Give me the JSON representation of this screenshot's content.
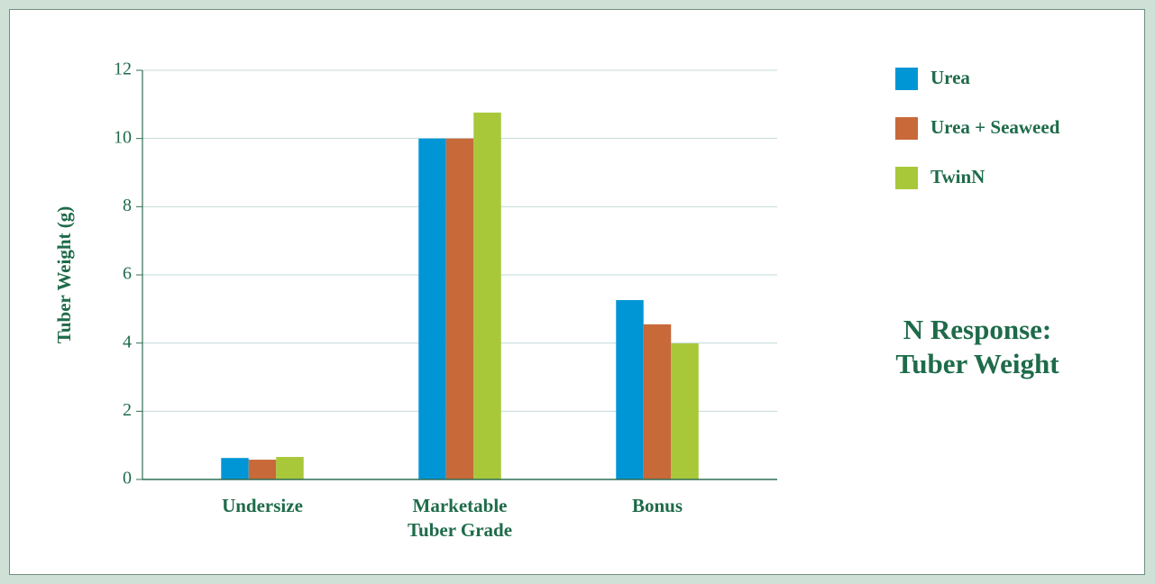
{
  "chart_data": {
    "type": "bar",
    "title": "N Response:\nTuber Weight",
    "y_label": "Tuber Weight (g)",
    "categories": [
      "Undersize",
      "Marketable\nTuber Grade",
      "Bonus"
    ],
    "series": [
      {
        "name": "Urea",
        "color": "#0096d6",
        "values": [
          0.63,
          10,
          5.26
        ]
      },
      {
        "name": "Urea + Seaweed",
        "color": "#c8693a",
        "values": [
          0.58,
          10,
          4.55
        ]
      },
      {
        "name": "TwinN",
        "color": "#a8c83a",
        "values": [
          0.66,
          10.76,
          3.99
        ]
      }
    ],
    "ylim": [
      0,
      12
    ],
    "yticks": [
      0,
      2,
      4,
      6,
      8,
      10,
      12
    ],
    "grid": true,
    "legend": "top-right"
  }
}
